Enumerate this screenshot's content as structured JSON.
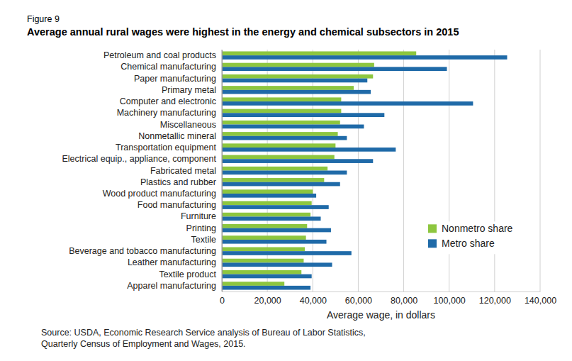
{
  "chart_data": {
    "type": "bar",
    "orientation": "horizontal",
    "figure_number": "Figure 9",
    "title": "Average annual rural wages were highest in the energy and chemical subsectors in 2015",
    "xlabel": "Average wage, in dollars",
    "source": [
      "Source: USDA, Economic Research Service analysis of Bureau of Labor Statistics,",
      "Quarterly Census of Employment and Wages, 2015."
    ],
    "categories": [
      "Petroleum and coal products",
      "Chemical manufacturing",
      "Paper manufacturing",
      "Primary metal",
      "Computer and electronic",
      "Machinery manufacturing",
      "Miscellaneous",
      "Nonmetallic mineral",
      "Transportation equipment",
      "Electrical equip., appliance, component",
      "Fabricated metal",
      "Plastics and rubber",
      "Wood product manufacturing",
      "Food manufacturing",
      "Furniture",
      "Printing",
      "Textile",
      "Beverage and tobacco manufacturing",
      "Leather manufacturing",
      "Textile product",
      "Apparel manufacturing"
    ],
    "series": [
      {
        "name": "Nonmetro share",
        "color": "#8dc63f",
        "values": [
          85500,
          67000,
          66500,
          58000,
          52500,
          52500,
          52000,
          51000,
          50000,
          49500,
          46500,
          45000,
          40000,
          39500,
          39000,
          37500,
          37000,
          36500,
          36000,
          35000,
          27500
        ]
      },
      {
        "name": "Metro share",
        "color": "#1f6aa8",
        "values": [
          125500,
          99000,
          64000,
          65500,
          110500,
          71500,
          62500,
          55000,
          76500,
          66500,
          55000,
          52000,
          41500,
          47000,
          43500,
          48000,
          46000,
          57000,
          48500,
          39500,
          39000
        ]
      }
    ],
    "xlim": [
      0,
      140000
    ],
    "xticks": [
      0,
      {
        "value": 20000,
        "label": "20,000"
      },
      {
        "value": 40000,
        "label": "40,000"
      },
      {
        "value": 60000,
        "label": "60,000"
      },
      {
        "value": 80000,
        "label": "80,000"
      },
      {
        "value": 100000,
        "label": "100,000"
      },
      {
        "value": 120000,
        "label": "120,000"
      },
      {
        "value": 140000,
        "label": "140,000"
      }
    ],
    "grid": true,
    "legend": "right"
  }
}
